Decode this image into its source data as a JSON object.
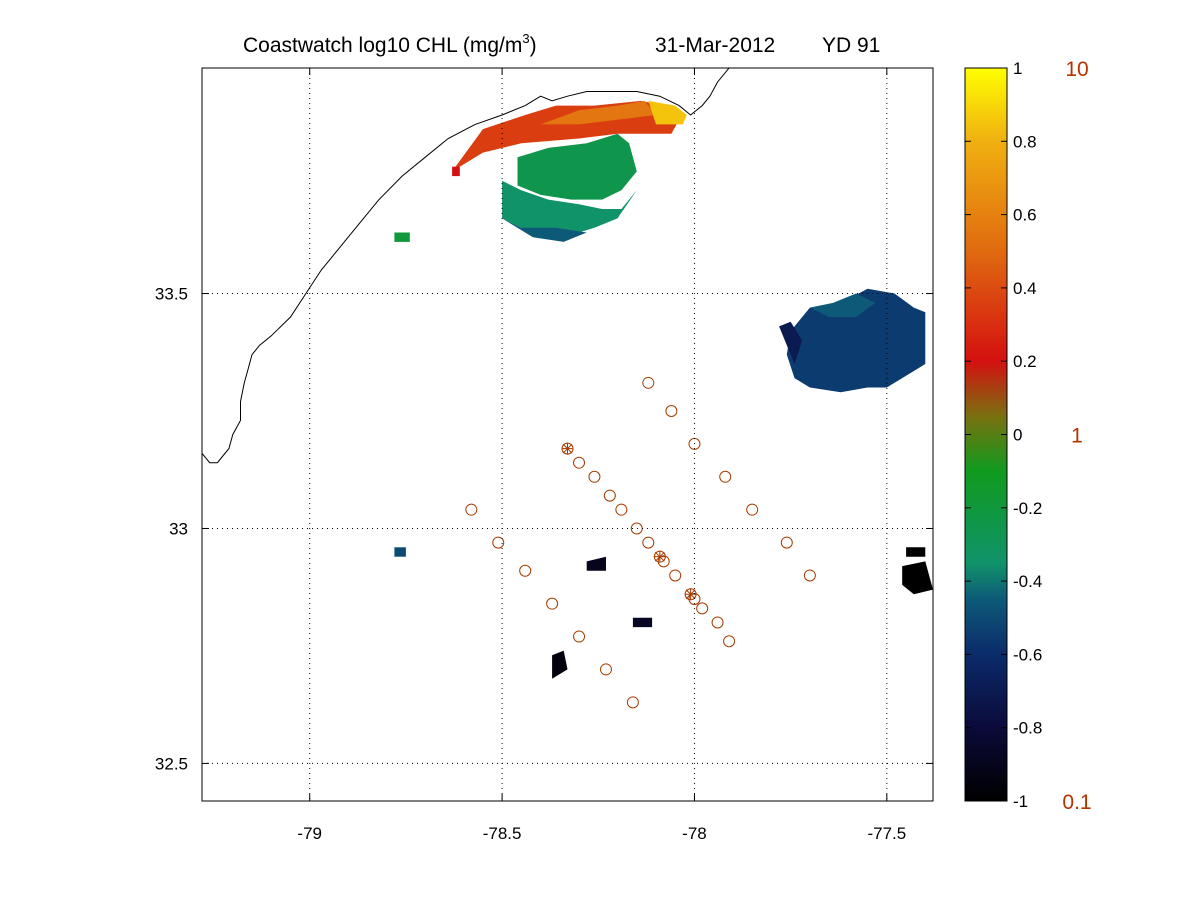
{
  "chart_data": {
    "type": "scatter",
    "title": {
      "left": "Coastwatch  log10  CHL (mg/m",
      "superscript": "3",
      "close": ")",
      "date": "31-Mar-2012",
      "yearday": "YD 91"
    },
    "xlim": [
      -79.28,
      -77.38
    ],
    "ylim": [
      32.42,
      33.98
    ],
    "xticks": [
      -79,
      -78.5,
      -78,
      -77.5
    ],
    "xtick_labels": [
      "-79",
      "-78.5",
      "-78",
      "-77.5"
    ],
    "yticks": [
      32.5,
      33,
      33.5
    ],
    "ytick_labels": [
      "32.5",
      "33",
      "33.5"
    ],
    "grid": true,
    "grid_style": "dotted",
    "colorbar": {
      "range": [
        -1,
        1
      ],
      "ticks": [
        "1",
        "0.8",
        "0.6",
        "0.4",
        "0.2",
        "0",
        "-0.2",
        "-0.4",
        "-0.6",
        "-0.8",
        "-1"
      ],
      "ticks_values": [
        1,
        0.8,
        0.6,
        0.4,
        0.2,
        0,
        -0.2,
        -0.4,
        -0.6,
        -0.8,
        -1
      ],
      "right_labels": [
        "10",
        "1",
        "0.1"
      ],
      "right_values": [
        1,
        0,
        -1
      ],
      "right_label_color": "#b83200",
      "colors": [
        [
          -1.0,
          "#000000"
        ],
        [
          -0.8,
          "#0b0a3a"
        ],
        [
          -0.6,
          "#0b2b6a"
        ],
        [
          -0.45,
          "#0d5a78"
        ],
        [
          -0.35,
          "#11936a"
        ],
        [
          -0.1,
          "#0f9b1e"
        ],
        [
          0.05,
          "#7a7010"
        ],
        [
          0.2,
          "#d41010"
        ],
        [
          0.5,
          "#e06a10"
        ],
        [
          0.8,
          "#f0b010"
        ],
        [
          1.0,
          "#ffff00"
        ]
      ]
    },
    "station_color": "#a63c00",
    "stations": [
      {
        "x": -78.12,
        "y": 33.31,
        "marker": "circle"
      },
      {
        "x": -78.06,
        "y": 33.25,
        "marker": "circle"
      },
      {
        "x": -78.0,
        "y": 33.18,
        "marker": "circle"
      },
      {
        "x": -77.92,
        "y": 33.11,
        "marker": "circle"
      },
      {
        "x": -77.85,
        "y": 33.04,
        "marker": "circle"
      },
      {
        "x": -77.76,
        "y": 32.97,
        "marker": "circle"
      },
      {
        "x": -77.7,
        "y": 32.9,
        "marker": "circle"
      },
      {
        "x": -78.33,
        "y": 33.17,
        "marker": "star"
      },
      {
        "x": -78.3,
        "y": 33.14,
        "marker": "circle"
      },
      {
        "x": -78.26,
        "y": 33.11,
        "marker": "circle"
      },
      {
        "x": -78.22,
        "y": 33.07,
        "marker": "circle"
      },
      {
        "x": -78.19,
        "y": 33.04,
        "marker": "circle"
      },
      {
        "x": -78.15,
        "y": 33.0,
        "marker": "circle"
      },
      {
        "x": -78.12,
        "y": 32.97,
        "marker": "circle"
      },
      {
        "x": -78.09,
        "y": 32.94,
        "marker": "star"
      },
      {
        "x": -78.08,
        "y": 32.93,
        "marker": "circle"
      },
      {
        "x": -78.05,
        "y": 32.9,
        "marker": "circle"
      },
      {
        "x": -78.01,
        "y": 32.86,
        "marker": "star"
      },
      {
        "x": -78.0,
        "y": 32.85,
        "marker": "circle"
      },
      {
        "x": -77.98,
        "y": 32.83,
        "marker": "circle"
      },
      {
        "x": -77.94,
        "y": 32.8,
        "marker": "circle"
      },
      {
        "x": -77.91,
        "y": 32.76,
        "marker": "circle"
      },
      {
        "x": -78.58,
        "y": 33.04,
        "marker": "circle"
      },
      {
        "x": -78.51,
        "y": 32.97,
        "marker": "circle"
      },
      {
        "x": -78.44,
        "y": 32.91,
        "marker": "circle"
      },
      {
        "x": -78.37,
        "y": 32.84,
        "marker": "circle"
      },
      {
        "x": -78.3,
        "y": 32.77,
        "marker": "circle"
      },
      {
        "x": -78.23,
        "y": 32.7,
        "marker": "circle"
      },
      {
        "x": -78.16,
        "y": 32.63,
        "marker": "circle"
      }
    ],
    "coastline": [
      [
        -77.9,
        33.99
      ],
      [
        -77.94,
        33.95
      ],
      [
        -77.96,
        33.92
      ],
      [
        -77.98,
        33.9
      ],
      [
        -78.01,
        33.88
      ],
      [
        -78.04,
        33.9
      ],
      [
        -78.09,
        33.92
      ],
      [
        -78.15,
        33.93
      ],
      [
        -78.22,
        33.93
      ],
      [
        -78.28,
        33.93
      ],
      [
        -78.33,
        33.92
      ],
      [
        -78.37,
        33.91
      ],
      [
        -78.4,
        33.92
      ],
      [
        -78.44,
        33.9
      ],
      [
        -78.5,
        33.88
      ],
      [
        -78.57,
        33.86
      ],
      [
        -78.64,
        33.83
      ],
      [
        -78.7,
        33.79
      ],
      [
        -78.76,
        33.75
      ],
      [
        -78.82,
        33.7
      ],
      [
        -78.87,
        33.65
      ],
      [
        -78.92,
        33.6
      ],
      [
        -78.97,
        33.55
      ],
      [
        -79.01,
        33.5
      ],
      [
        -79.05,
        33.45
      ],
      [
        -79.1,
        33.41
      ],
      [
        -79.13,
        33.39
      ],
      [
        -79.15,
        33.37
      ],
      [
        -79.16,
        33.34
      ],
      [
        -79.17,
        33.31
      ],
      [
        -79.18,
        33.27
      ],
      [
        -79.18,
        33.23
      ],
      [
        -79.2,
        33.2
      ],
      [
        -79.21,
        33.17
      ],
      [
        -79.23,
        33.15
      ],
      [
        -79.24,
        33.14
      ],
      [
        -79.26,
        33.14
      ],
      [
        -79.28,
        33.16
      ]
    ],
    "fields": [
      {
        "value": 0.35,
        "poly": [
          [
            -78.63,
            33.76
          ],
          [
            -78.55,
            33.85
          ],
          [
            -78.44,
            33.88
          ],
          [
            -78.36,
            33.9
          ],
          [
            -78.26,
            33.9
          ],
          [
            -78.14,
            33.91
          ],
          [
            -78.08,
            33.9
          ],
          [
            -78.04,
            33.87
          ],
          [
            -78.06,
            33.84
          ],
          [
            -78.2,
            33.84
          ],
          [
            -78.3,
            33.83
          ],
          [
            -78.45,
            33.82
          ],
          [
            -78.55,
            33.8
          ]
        ]
      },
      {
        "value": 0.55,
        "poly": [
          [
            -78.4,
            33.86
          ],
          [
            -78.3,
            33.89
          ],
          [
            -78.2,
            33.9
          ],
          [
            -78.13,
            33.91
          ],
          [
            -78.1,
            33.88
          ],
          [
            -78.2,
            33.87
          ],
          [
            -78.3,
            33.86
          ]
        ]
      },
      {
        "value": 0.85,
        "poly": [
          [
            -78.12,
            33.91
          ],
          [
            -78.05,
            33.9
          ],
          [
            -78.02,
            33.88
          ],
          [
            -78.03,
            33.86
          ],
          [
            -78.1,
            33.86
          ]
        ]
      },
      {
        "value": -0.25,
        "poly": [
          [
            -78.46,
            33.79
          ],
          [
            -78.38,
            33.81
          ],
          [
            -78.28,
            33.82
          ],
          [
            -78.2,
            33.84
          ],
          [
            -78.17,
            33.82
          ],
          [
            -78.15,
            33.76
          ],
          [
            -78.19,
            33.72
          ],
          [
            -78.24,
            33.7
          ],
          [
            -78.32,
            33.7
          ],
          [
            -78.4,
            33.71
          ],
          [
            -78.46,
            33.73
          ]
        ]
      },
      {
        "value": -0.35,
        "poly": [
          [
            -78.5,
            33.74
          ],
          [
            -78.45,
            33.72
          ],
          [
            -78.38,
            33.7
          ],
          [
            -78.3,
            33.69
          ],
          [
            -78.24,
            33.68
          ],
          [
            -78.19,
            33.68
          ],
          [
            -78.15,
            33.72
          ],
          [
            -78.2,
            33.66
          ],
          [
            -78.26,
            33.64
          ],
          [
            -78.3,
            33.63
          ],
          [
            -78.36,
            33.63
          ],
          [
            -78.45,
            33.64
          ],
          [
            -78.5,
            33.66
          ]
        ]
      },
      {
        "value": -0.45,
        "poly": [
          [
            -78.5,
            33.66
          ],
          [
            -78.42,
            33.62
          ],
          [
            -78.34,
            33.61
          ],
          [
            -78.28,
            33.63
          ],
          [
            -78.36,
            33.64
          ],
          [
            -78.45,
            33.64
          ]
        ]
      },
      {
        "value": -0.55,
        "poly": [
          [
            -77.75,
            33.42
          ],
          [
            -77.7,
            33.47
          ],
          [
            -77.62,
            33.48
          ],
          [
            -77.55,
            33.51
          ],
          [
            -77.48,
            33.5
          ],
          [
            -77.43,
            33.47
          ],
          [
            -77.4,
            33.46
          ],
          [
            -77.4,
            33.35
          ],
          [
            -77.46,
            33.32
          ],
          [
            -77.5,
            33.3
          ],
          [
            -77.55,
            33.3
          ],
          [
            -77.62,
            33.29
          ],
          [
            -77.7,
            33.3
          ],
          [
            -77.74,
            33.32
          ],
          [
            -77.76,
            33.37
          ]
        ]
      },
      {
        "value": -0.45,
        "poly": [
          [
            -77.7,
            33.47
          ],
          [
            -77.64,
            33.48
          ],
          [
            -77.58,
            33.5
          ],
          [
            -77.53,
            33.48
          ],
          [
            -77.58,
            33.45
          ],
          [
            -77.65,
            33.45
          ]
        ]
      },
      {
        "value": -0.7,
        "poly": [
          [
            -77.78,
            33.43
          ],
          [
            -77.75,
            33.44
          ],
          [
            -77.72,
            33.4
          ],
          [
            -77.74,
            33.35
          ]
        ]
      }
    ],
    "blobs": [
      {
        "value": -0.95,
        "poly": [
          [
            -78.37,
            32.73
          ],
          [
            -78.34,
            32.74
          ],
          [
            -78.33,
            32.7
          ],
          [
            -78.37,
            32.68
          ]
        ]
      },
      {
        "value": -0.9,
        "poly": [
          [
            -78.28,
            32.93
          ],
          [
            -78.23,
            32.94
          ],
          [
            -78.23,
            32.91
          ],
          [
            -78.28,
            32.91
          ]
        ]
      },
      {
        "value": -0.88,
        "poly": [
          [
            -78.16,
            32.81
          ],
          [
            -78.11,
            32.81
          ],
          [
            -78.11,
            32.79
          ],
          [
            -78.16,
            32.79
          ]
        ]
      },
      {
        "value": -1.0,
        "poly": [
          [
            -77.46,
            32.92
          ],
          [
            -77.4,
            32.93
          ],
          [
            -77.38,
            32.87
          ],
          [
            -77.43,
            32.86
          ],
          [
            -77.46,
            32.88
          ]
        ]
      },
      {
        "value": -1.0,
        "poly": [
          [
            -77.45,
            32.96
          ],
          [
            -77.4,
            32.96
          ],
          [
            -77.4,
            32.94
          ],
          [
            -77.45,
            32.94
          ]
        ]
      },
      {
        "value": -0.5,
        "poly": [
          [
            -78.78,
            32.96
          ],
          [
            -78.75,
            32.96
          ],
          [
            -78.75,
            32.94
          ],
          [
            -78.78,
            32.94
          ]
        ]
      },
      {
        "value": -0.2,
        "poly": [
          [
            -78.78,
            33.63
          ],
          [
            -78.74,
            33.63
          ],
          [
            -78.74,
            33.61
          ],
          [
            -78.78,
            33.61
          ]
        ]
      },
      {
        "value": 0.2,
        "poly": [
          [
            -78.63,
            33.77
          ],
          [
            -78.61,
            33.77
          ],
          [
            -78.61,
            33.75
          ],
          [
            -78.63,
            33.75
          ]
        ]
      }
    ]
  }
}
